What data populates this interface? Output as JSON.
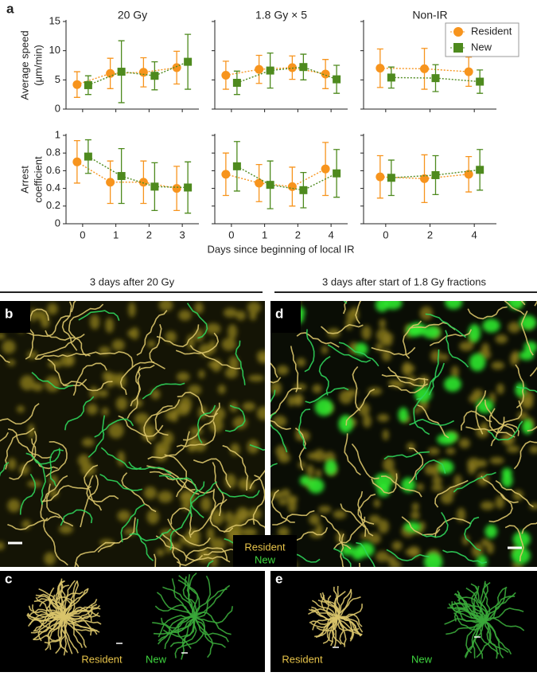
{
  "panel_labels": {
    "a": "a",
    "b": "b",
    "c": "c",
    "d": "d",
    "e": "e"
  },
  "figure": {
    "xlabel": "Days since beginning of local IR"
  },
  "chart_data": [
    {
      "type": "line",
      "title": "20 Gy",
      "ylabel": [
        "Average speed",
        "(μm/min)"
      ],
      "categories": [
        "0",
        "1",
        "2",
        "3"
      ],
      "ylim": [
        0,
        15
      ],
      "yticks": [
        0,
        5,
        10,
        15
      ],
      "series": [
        {
          "color": "#f7941d",
          "values": [
            4.2,
            6.1,
            6.3,
            7.1
          ],
          "errors": [
            2.2,
            2.6,
            2.5,
            2.8
          ]
        },
        {
          "color": "#4e8a1e",
          "values": [
            4.1,
            6.4,
            5.7,
            8.1
          ],
          "errors": [
            1.6,
            5.3,
            2.4,
            4.7
          ]
        }
      ]
    },
    {
      "type": "line",
      "title": "1.8 Gy × 5",
      "categories": [
        "0",
        "1",
        "2",
        "4"
      ],
      "ylim": [
        0,
        15
      ],
      "yticks": [
        0,
        5,
        10,
        15
      ],
      "series": [
        {
          "color": "#f7941d",
          "values": [
            5.8,
            6.8,
            7.1,
            6.0
          ],
          "errors": [
            2.4,
            2.4,
            2.0,
            2.5
          ]
        },
        {
          "color": "#4e8a1e",
          "values": [
            4.5,
            6.6,
            7.2,
            5.1
          ],
          "errors": [
            2.0,
            3.0,
            2.2,
            2.4
          ]
        }
      ]
    },
    {
      "type": "line",
      "title": "Non-IR",
      "categories": [
        "0",
        "2",
        "4"
      ],
      "ylim": [
        0,
        15
      ],
      "yticks": [
        0,
        5,
        10,
        15
      ],
      "legend": "upper right",
      "series": [
        {
          "name": "Resident",
          "color": "#f7941d",
          "values": [
            7.0,
            6.9,
            6.4
          ],
          "errors": [
            3.3,
            3.5,
            2.5
          ]
        },
        {
          "name": "New",
          "color": "#4e8a1e",
          "values": [
            5.4,
            5.3,
            4.7
          ],
          "errors": [
            1.8,
            2.3,
            2.0
          ]
        }
      ]
    },
    {
      "type": "line",
      "ylabel": [
        "Arrest",
        "coefficient"
      ],
      "categories": [
        "0",
        "1",
        "2",
        "3"
      ],
      "ylim": [
        0,
        1
      ],
      "yticks": [
        0,
        0.2,
        0.4,
        0.6,
        0.8,
        1
      ],
      "series": [
        {
          "color": "#f7941d",
          "values": [
            0.7,
            0.47,
            0.47,
            0.4
          ],
          "errors": [
            0.24,
            0.24,
            0.24,
            0.25
          ]
        },
        {
          "color": "#4e8a1e",
          "values": [
            0.76,
            0.54,
            0.42,
            0.41
          ],
          "errors": [
            0.19,
            0.31,
            0.27,
            0.29
          ]
        }
      ]
    },
    {
      "type": "line",
      "categories": [
        "0",
        "1",
        "2",
        "4"
      ],
      "ylim": [
        0,
        1
      ],
      "yticks": [
        0,
        0.2,
        0.4,
        0.6,
        0.8,
        1
      ],
      "series": [
        {
          "color": "#f7941d",
          "values": [
            0.56,
            0.46,
            0.42,
            0.62
          ],
          "errors": [
            0.24,
            0.21,
            0.22,
            0.3
          ]
        },
        {
          "color": "#4e8a1e",
          "values": [
            0.65,
            0.44,
            0.38,
            0.57
          ],
          "errors": [
            0.28,
            0.27,
            0.2,
            0.27
          ]
        }
      ]
    },
    {
      "type": "line",
      "categories": [
        "0",
        "2",
        "4"
      ],
      "ylim": [
        0,
        1
      ],
      "yticks": [
        0,
        0.2,
        0.4,
        0.6,
        0.8,
        1
      ],
      "series": [
        {
          "color": "#f7941d",
          "values": [
            0.53,
            0.51,
            0.56
          ],
          "errors": [
            0.24,
            0.27,
            0.2
          ]
        },
        {
          "color": "#4e8a1e",
          "values": [
            0.52,
            0.55,
            0.61
          ],
          "errors": [
            0.2,
            0.22,
            0.23
          ]
        }
      ]
    }
  ],
  "images": {
    "b": {
      "caption": "3 days after 20 Gy",
      "legend": [
        "Resident",
        "New"
      ]
    },
    "d": {
      "caption": "3 days after start of 1.8 Gy fractions"
    },
    "c": {
      "labels": [
        "Resident",
        "New"
      ]
    },
    "e": {
      "labels": [
        "Resident",
        "New"
      ]
    }
  }
}
